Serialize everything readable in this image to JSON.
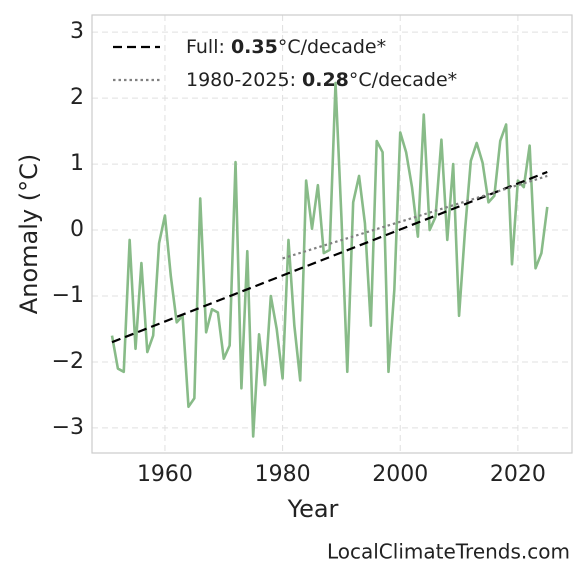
{
  "chart_data": {
    "type": "line",
    "xlabel": "Year",
    "ylabel": "Anomaly (°C)",
    "watermark": "LocalClimateTrends.com",
    "xlim": [
      1947.6,
      2029.2
    ],
    "ylim": [
      -3.38,
      3.26
    ],
    "xticks": [
      1960,
      1980,
      2000,
      2020
    ],
    "yticks": [
      {
        "value": -3,
        "label": "−3"
      },
      {
        "value": -2,
        "label": "−2"
      },
      {
        "value": -1,
        "label": "−1"
      },
      0,
      1,
      2,
      3
    ],
    "grid": true,
    "legend": "upper left",
    "x": [
      1951,
      1952,
      1953,
      1954,
      1955,
      1956,
      1957,
      1958,
      1959,
      1960,
      1961,
      1962,
      1963,
      1964,
      1965,
      1966,
      1967,
      1968,
      1969,
      1970,
      1971,
      1972,
      1973,
      1974,
      1975,
      1976,
      1977,
      1978,
      1979,
      1980,
      1981,
      1982,
      1983,
      1984,
      1985,
      1986,
      1987,
      1988,
      1989,
      1990,
      1991,
      1992,
      1993,
      1994,
      1995,
      1996,
      1997,
      1998,
      1999,
      2000,
      2001,
      2002,
      2003,
      2004,
      2005,
      2006,
      2007,
      2008,
      2009,
      2010,
      2011,
      2012,
      2013,
      2014,
      2015,
      2016,
      2017,
      2018,
      2019,
      2020,
      2021,
      2022,
      2023,
      2024,
      2025
    ],
    "series": [
      {
        "color": "#88bb88",
        "values": [
          -1.6,
          -2.1,
          -2.15,
          -0.15,
          -1.8,
          -0.5,
          -1.85,
          -1.6,
          -0.2,
          0.22,
          -0.7,
          -1.4,
          -1.3,
          -2.68,
          -2.55,
          0.48,
          -1.55,
          -1.2,
          -1.25,
          -1.95,
          -1.75,
          1.03,
          -2.4,
          -0.32,
          -3.13,
          -1.58,
          -2.35,
          -1.0,
          -1.5,
          -2.25,
          -0.15,
          -1.45,
          -2.28,
          0.75,
          0.02,
          0.68,
          -0.35,
          -0.3,
          2.23,
          0.2,
          -2.15,
          0.42,
          0.82,
          0.1,
          -1.45,
          1.35,
          1.18,
          -2.15,
          -0.9,
          1.48,
          1.18,
          0.65,
          -0.1,
          1.75,
          0.0,
          0.2,
          1.37,
          -0.15,
          1.0,
          -1.3,
          -0.02,
          1.05,
          1.32,
          1.02,
          0.42,
          0.52,
          1.35,
          1.6,
          -0.52,
          0.75,
          0.65,
          1.28,
          -0.58,
          -0.35,
          0.35
        ]
      },
      {
        "name_parts": [
          "Full: ",
          "0.35",
          "°C/decade*"
        ],
        "color": "#000000",
        "dash": "dashed",
        "x": [
          1951,
          2025
        ],
        "values": [
          -1.7,
          0.88
        ]
      },
      {
        "name_parts": [
          "1980-2025: ",
          "0.28",
          "°C/decade*"
        ],
        "color": "#808080",
        "dash": "dotted",
        "x": [
          1980,
          2025
        ],
        "values": [
          -0.43,
          0.82
        ]
      }
    ]
  }
}
